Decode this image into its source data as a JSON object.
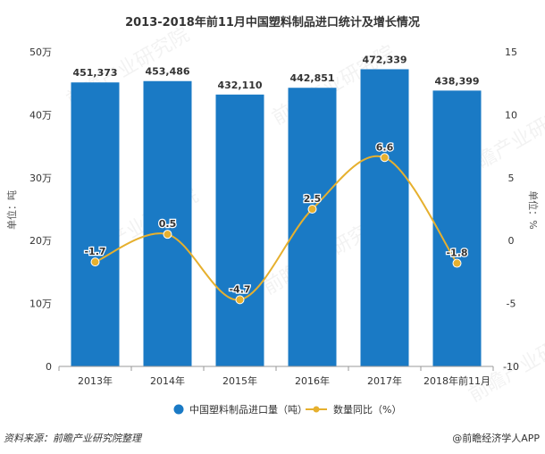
{
  "chart_data": {
    "type": "bar+line",
    "title": "2013-2018年前11月中国塑料制品进口统计及增长情况",
    "categories": [
      "2013年",
      "2014年",
      "2015年",
      "2016年",
      "2017年",
      "2018年前11月"
    ],
    "series": [
      {
        "name": "中国塑料制品进口量（吨）",
        "type": "bar",
        "axis": "left",
        "values": [
          451373,
          453486,
          432110,
          442851,
          472339,
          438399
        ],
        "labels": [
          "451,373",
          "453,486",
          "432,110",
          "442,851",
          "472,339",
          "438,399"
        ],
        "color": "#1a7ac5"
      },
      {
        "name": "数量同比（%）",
        "type": "line",
        "axis": "right",
        "values": [
          -1.7,
          0.5,
          -4.7,
          2.5,
          6.6,
          -1.8
        ],
        "labels": [
          "-1.7",
          "0.5",
          "-4.7",
          "2.5",
          "6.6",
          "-1.8"
        ],
        "color": "#e6b02e"
      }
    ],
    "y_left": {
      "label": "单位：吨",
      "min": 0,
      "max": 500000,
      "ticks": [
        0,
        100000,
        200000,
        300000,
        400000,
        500000
      ],
      "tick_labels": [
        "0",
        "10万",
        "20万",
        "30万",
        "40万",
        "50万"
      ]
    },
    "y_right": {
      "label": "单位：%",
      "min": -10,
      "max": 15,
      "ticks": [
        -10,
        -5,
        0,
        5,
        10,
        15
      ],
      "tick_labels": [
        "-10",
        "-5",
        "0",
        "5",
        "10",
        "15"
      ]
    },
    "grid": false,
    "legend_position": "bottom"
  },
  "footer": {
    "source": "资料来源：前瞻产业研究院整理",
    "brand": "@前瞻经济学人APP"
  },
  "watermark": "前瞻产业研究院"
}
